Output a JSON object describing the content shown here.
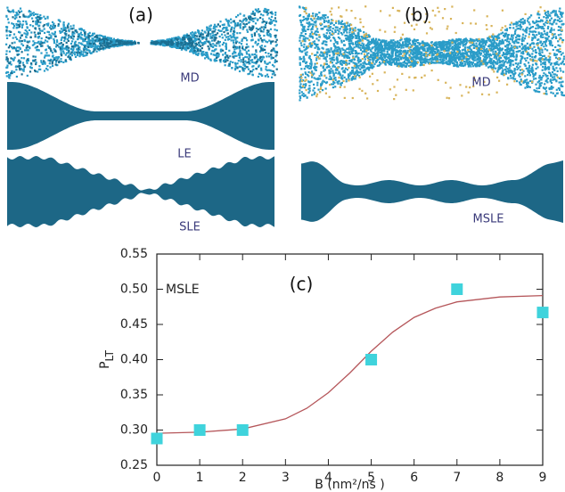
{
  "figure": {
    "panel_a": {
      "label": "(a)",
      "labels": [
        "MD",
        "LE",
        "SLE"
      ]
    },
    "panel_b": {
      "label": "(b)",
      "labels": [
        "MD",
        "MSLE"
      ]
    }
  },
  "chart_data": {
    "type": "scatter",
    "panel_label": "(c)",
    "annotation": "MSLE",
    "xlabel": "B (nm²/ns )",
    "ylabel": "P",
    "ylabel_sub": "LT",
    "xlim": [
      0,
      9
    ],
    "ylim": [
      0.25,
      0.55
    ],
    "xticks": [
      0,
      1,
      2,
      3,
      4,
      5,
      6,
      7,
      8,
      9
    ],
    "yticks": [
      0.25,
      {
        "value": 0.3,
        "label": "0.30"
      },
      0.35,
      {
        "value": 0.4,
        "label": "0.40"
      },
      0.45,
      {
        "value": 0.5,
        "label": "0.50"
      },
      0.55
    ],
    "grid": false,
    "series": [
      {
        "type": "scatter",
        "marker": "square",
        "color": "#3fd3dc",
        "x": [
          0,
          1,
          2,
          5,
          7,
          9
        ],
        "values": [
          0.288,
          0.3,
          0.3,
          0.4,
          0.5,
          0.467
        ]
      },
      {
        "type": "line",
        "color": "#b5565a",
        "x": [
          0,
          1,
          2,
          3,
          3.5,
          4,
          4.5,
          5,
          5.5,
          6,
          6.5,
          7,
          8,
          9
        ],
        "values": [
          0.2955,
          0.2969,
          0.3015,
          0.316,
          0.331,
          0.353,
          0.381,
          0.412,
          0.439,
          0.46,
          0.473,
          0.482,
          0.489,
          0.491
        ]
      }
    ]
  }
}
